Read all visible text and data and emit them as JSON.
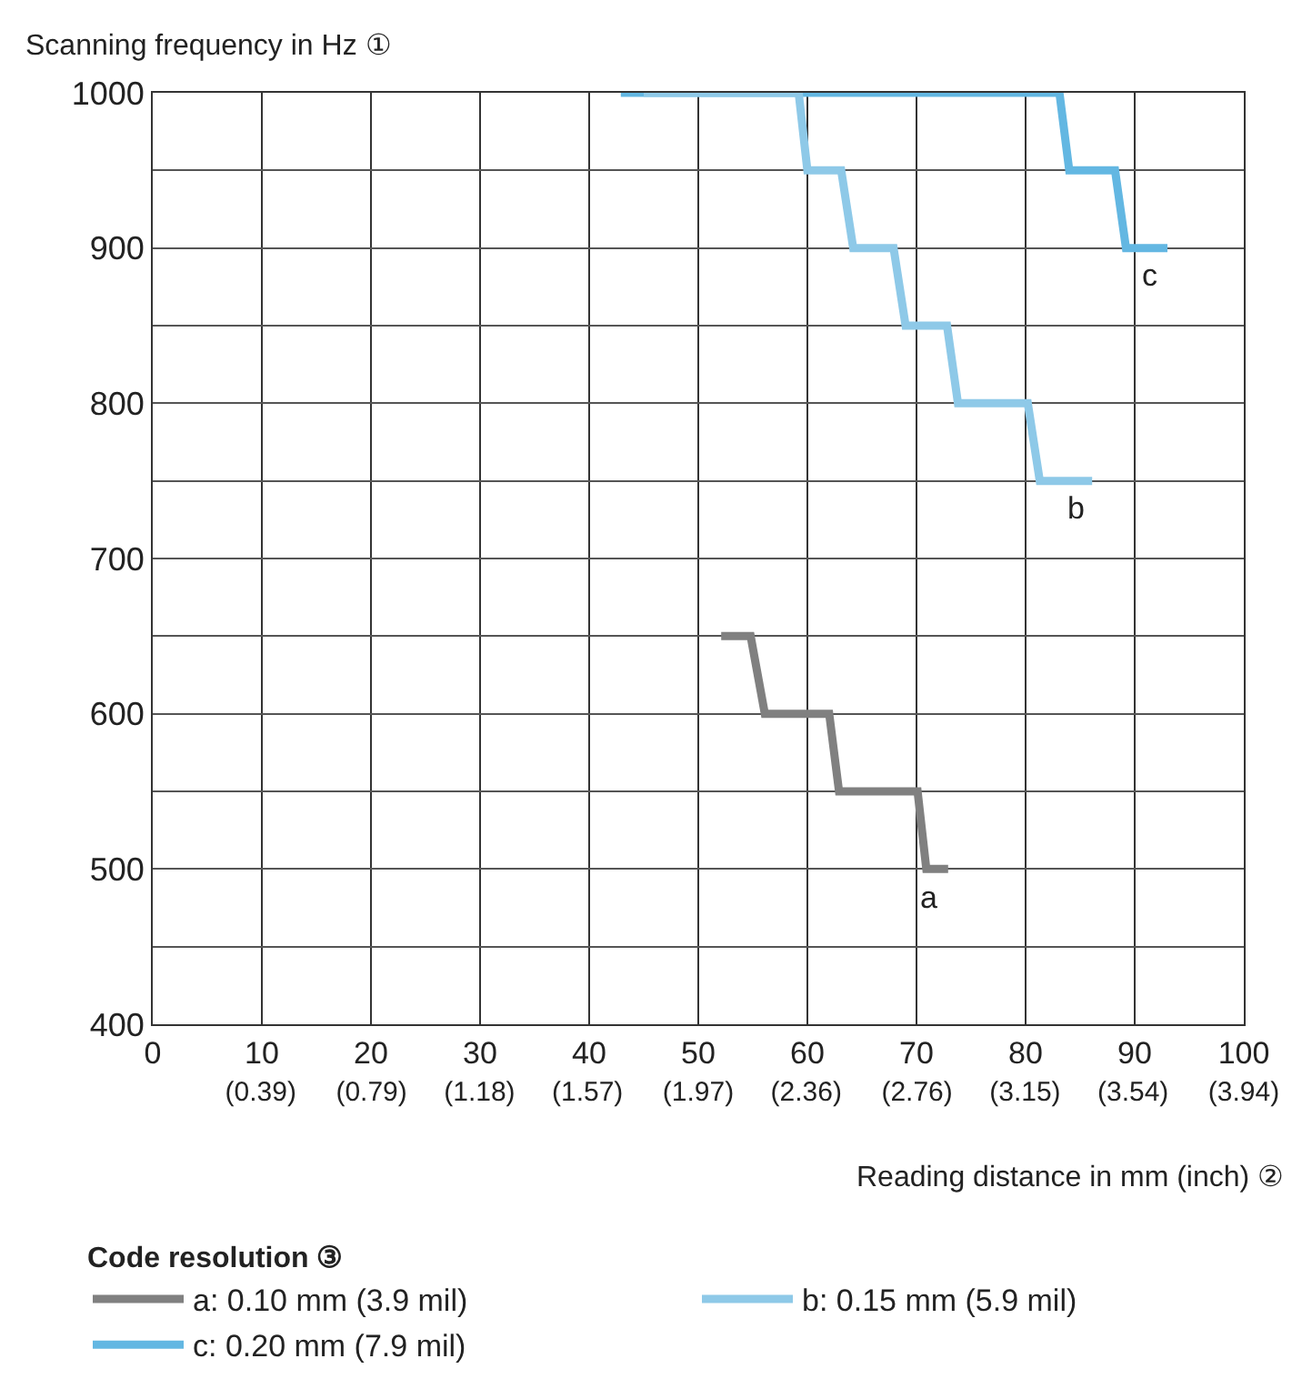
{
  "chart_data": {
    "type": "line",
    "ylabel": "Scanning frequency in Hz ①",
    "xlabel": "Reading distance in mm (inch) ②",
    "legend_title": "Code resolution ③",
    "xlim": [
      0,
      100
    ],
    "ylim": [
      400,
      1000
    ],
    "xticks": [
      0,
      10,
      20,
      30,
      40,
      50,
      60,
      70,
      80,
      90,
      100
    ],
    "x2lim": [
      0,
      3.94
    ],
    "x2ticks": [
      {
        "value": 0.39,
        "label": "(0.39)"
      },
      {
        "value": 0.79,
        "label": "(0.79)"
      },
      {
        "value": 1.18,
        "label": "(1.18)"
      },
      {
        "value": 1.57,
        "label": "(1.57)"
      },
      {
        "value": 1.97,
        "label": "(1.97)"
      },
      {
        "value": 2.36,
        "label": "(2.36)"
      },
      {
        "value": 2.76,
        "label": "(2.76)"
      },
      {
        "value": 3.15,
        "label": "(3.15)"
      },
      {
        "value": 3.54,
        "label": "(3.54)"
      },
      {
        "value": 3.94,
        "label": "(3.94)"
      }
    ],
    "yticks": [
      400,
      {
        "value": 450,
        "label": null
      },
      500,
      {
        "value": 550,
        "label": null
      },
      600,
      {
        "value": 650,
        "label": null
      },
      700,
      {
        "value": 750,
        "label": null
      },
      800,
      {
        "value": 850,
        "label": null
      },
      900,
      {
        "value": 950,
        "label": null
      },
      1000
    ],
    "grid": true,
    "legend": "bottom",
    "marker": "none",
    "line_style": "solid",
    "series": [
      {
        "name": "a: 0.10 mm (3.9 mil)",
        "color": "#808080",
        "x": [
          52.1,
          54.8,
          56.1,
          62,
          62.9,
          70.1,
          70.9,
          72.9
        ],
        "values": [
          650,
          650,
          600,
          600,
          550,
          550,
          500,
          500
        ]
      },
      {
        "name": "b: 0.15 mm (5.9 mil)",
        "color": "#8ec9e8",
        "x": [
          45,
          59.2,
          60,
          63.1,
          64.2,
          67.9,
          69,
          72.8,
          73.8,
          80.2,
          81.3,
          86.1
        ],
        "values": [
          1000,
          1000,
          950,
          950,
          900,
          900,
          850,
          850,
          800,
          800,
          750,
          750
        ]
      },
      {
        "name": "c: 0.20 mm (7.9 mil)",
        "color": "#63b7e2",
        "x": [
          42.9,
          83.1,
          84,
          88.2,
          89.2,
          93
        ],
        "values": [
          1000,
          1000,
          950,
          950,
          900,
          900
        ]
      }
    ],
    "annotations": [
      "a",
      "b",
      "c"
    ]
  }
}
